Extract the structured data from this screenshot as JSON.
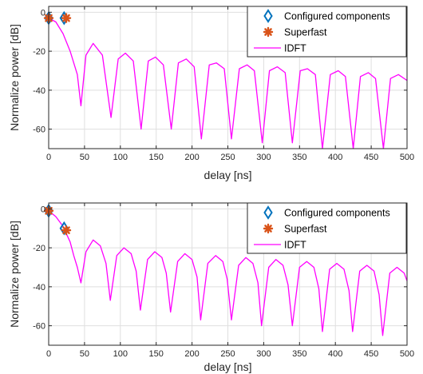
{
  "colors": {
    "configured": "#0072BD",
    "superfast": "#D95319",
    "idft": "#FF00FF",
    "grid": "#DFDFDF",
    "axis": "#262626"
  },
  "chart_data": [
    {
      "type": "line",
      "xlabel": "delay [ns]",
      "ylabel": "Normalize power [dB]",
      "xlim": [
        0,
        500
      ],
      "ylim": [
        -70,
        3
      ],
      "xticks": [
        0,
        50,
        100,
        150,
        200,
        250,
        300,
        350,
        400,
        450,
        500
      ],
      "yticks": [
        0,
        -20,
        -40,
        -60
      ],
      "grid": true,
      "legend_position": "top-right",
      "legend": [
        "Configured components",
        "Superfast",
        "IDFT"
      ],
      "series": [
        {
          "name": "Configured components",
          "marker": "diamond",
          "x": [
            0,
            21.5
          ],
          "y": [
            -3,
            -3
          ]
        },
        {
          "name": "Superfast",
          "marker": "asterisk",
          "x": [
            0,
            24.5
          ],
          "y": [
            -3,
            -3
          ]
        },
        {
          "name": "IDFT",
          "line": true,
          "x": [
            0,
            10,
            20,
            30,
            40,
            45,
            52,
            62,
            75,
            87,
            97,
            107,
            118,
            129,
            139,
            149,
            160,
            171,
            181,
            192,
            203,
            213,
            224,
            234,
            245,
            255,
            266,
            277,
            287,
            298,
            308,
            319,
            330,
            340,
            351,
            361,
            372,
            382,
            393,
            404,
            414,
            425,
            435,
            446,
            456,
            467,
            477,
            488,
            500
          ],
          "y": [
            -3,
            -5,
            -11,
            -20,
            -32,
            -48,
            -22,
            -16,
            -22,
            -54,
            -24,
            -21,
            -25,
            -60,
            -25,
            -23,
            -27,
            -60,
            -26,
            -24,
            -28,
            -65,
            -27,
            -26,
            -29,
            -65,
            -29,
            -27,
            -30,
            -67,
            -30,
            -28,
            -31,
            -67,
            -30,
            -29,
            -32,
            -70,
            -32,
            -30,
            -33,
            -70,
            -33,
            -31,
            -34,
            -70,
            -34,
            -32,
            -35
          ]
        }
      ]
    },
    {
      "type": "line",
      "xlabel": "delay [ns]",
      "ylabel": "Normalize power [dB]",
      "xlim": [
        0,
        500
      ],
      "ylim": [
        -70,
        3
      ],
      "xticks": [
        0,
        50,
        100,
        150,
        200,
        250,
        300,
        350,
        400,
        450,
        500
      ],
      "yticks": [
        0,
        -20,
        -40,
        -60
      ],
      "grid": true,
      "legend_position": "top-right",
      "legend": [
        "Configured components",
        "Superfast",
        "IDFT"
      ],
      "series": [
        {
          "name": "Configured components",
          "marker": "diamond",
          "x": [
            0,
            21.5
          ],
          "y": [
            -1,
            -10
          ]
        },
        {
          "name": "Superfast",
          "marker": "asterisk",
          "x": [
            0,
            24.5
          ],
          "y": [
            -1,
            -11
          ]
        },
        {
          "name": "IDFT",
          "line": true,
          "x": [
            0,
            10,
            20,
            30,
            35,
            40,
            45,
            52,
            62,
            72,
            80,
            86,
            95,
            105,
            115,
            122,
            128,
            138,
            148,
            158,
            164,
            170,
            180,
            190,
            200,
            207,
            212,
            222,
            233,
            243,
            249,
            255,
            265,
            275,
            285,
            292,
            297,
            307,
            317,
            327,
            334,
            340,
            350,
            360,
            370,
            377,
            382,
            392,
            402,
            412,
            419,
            424,
            434,
            444,
            454,
            461,
            466,
            476,
            486,
            496,
            500
          ],
          "y": [
            -1,
            -4,
            -9,
            -17,
            -24,
            -30,
            -38,
            -22,
            -16,
            -19,
            -28,
            -47,
            -24,
            -20,
            -23,
            -32,
            -52,
            -26,
            -22,
            -25,
            -33,
            -53,
            -27,
            -23,
            -26,
            -35,
            -57,
            -28,
            -24,
            -27,
            -36,
            -57,
            -29,
            -25,
            -28,
            -38,
            -60,
            -30,
            -26,
            -29,
            -39,
            -60,
            -30,
            -27,
            -30,
            -41,
            -63,
            -31,
            -28,
            -31,
            -42,
            -63,
            -32,
            -29,
            -32,
            -44,
            -65,
            -33,
            -30,
            -33,
            -37
          ]
        }
      ]
    }
  ]
}
